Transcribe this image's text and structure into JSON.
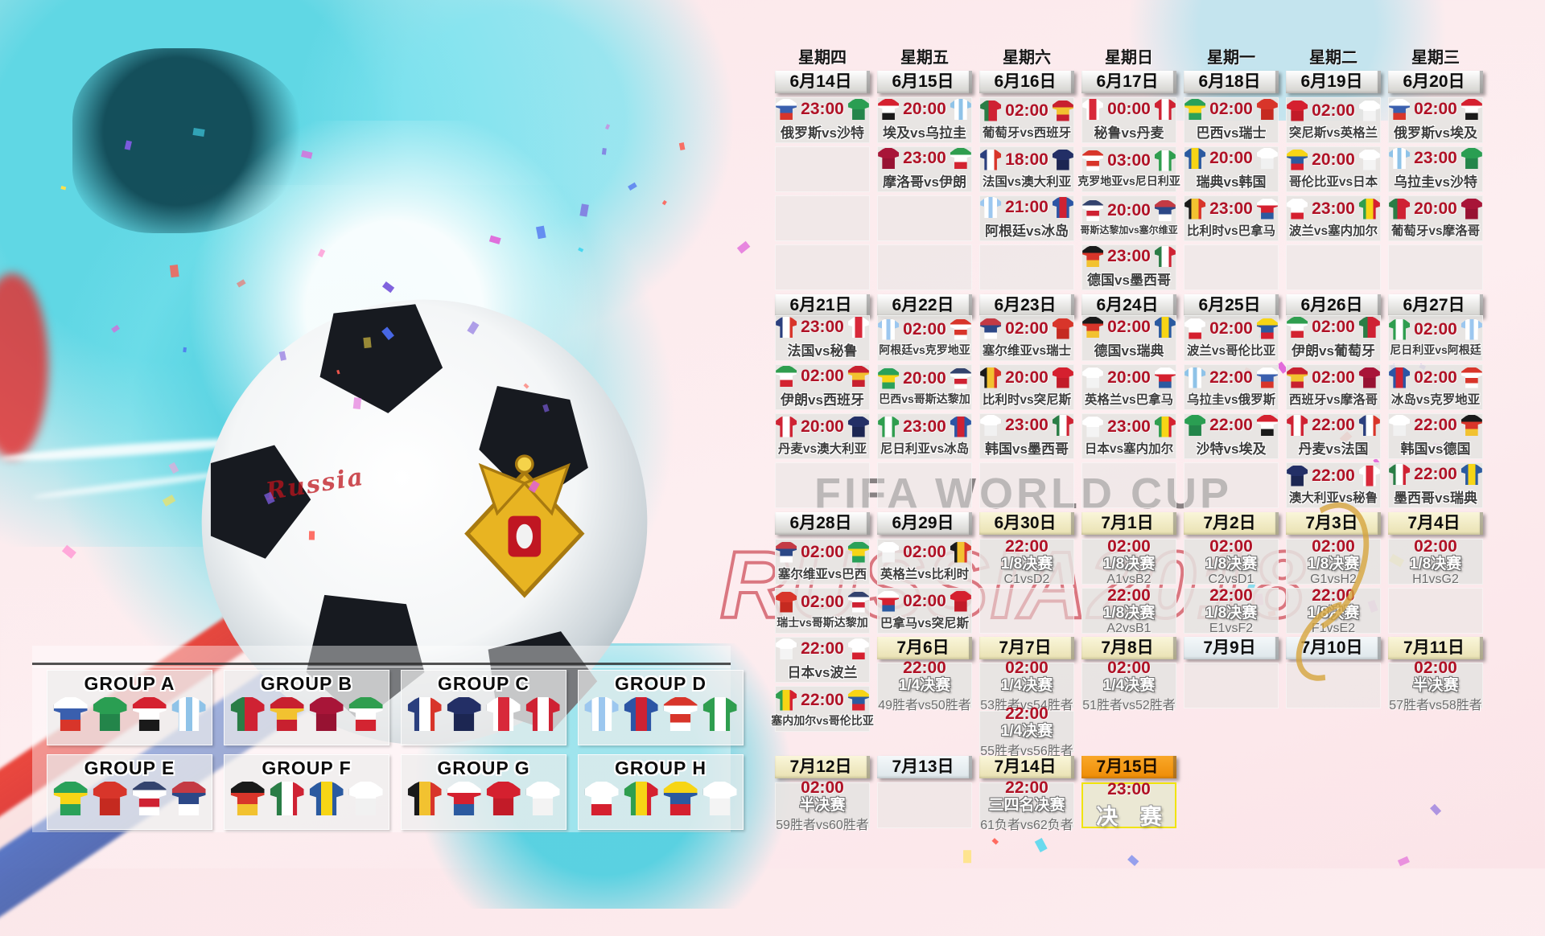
{
  "watermarks": {
    "title": "FIFA WORLD CUP",
    "subtitle": "RUSSIA2018",
    "script": "Russia"
  },
  "calendar": {
    "weekdays": [
      "星期四",
      "星期五",
      "星期六",
      "星期日",
      "星期一",
      "星期二",
      "星期三"
    ],
    "blocks": [
      {
        "dates": [
          {
            "label": "6月14日",
            "style": "plain"
          },
          {
            "label": "6月15日",
            "style": "plain"
          },
          {
            "label": "6月16日",
            "style": "plain"
          },
          {
            "label": "6月17日",
            "style": "plain"
          },
          {
            "label": "6月18日",
            "style": "plain"
          },
          {
            "label": "6月19日",
            "style": "plain"
          },
          {
            "label": "6月20日",
            "style": "plain"
          }
        ],
        "rows": [
          [
            {
              "time": "23:00",
              "home": "俄罗斯",
              "away": "沙特"
            },
            {
              "time": "20:00",
              "home": "埃及",
              "away": "乌拉圭"
            },
            {
              "time": "02:00",
              "home": "葡萄牙",
              "away": "西班牙"
            },
            {
              "time": "00:00",
              "home": "秘鲁",
              "away": "丹麦"
            },
            {
              "time": "02:00",
              "home": "巴西",
              "away": "瑞士"
            },
            {
              "time": "02:00",
              "home": "突尼斯",
              "away": "英格兰"
            },
            {
              "time": "02:00",
              "home": "俄罗斯",
              "away": "埃及"
            }
          ],
          [
            {
              "empty": true
            },
            {
              "time": "23:00",
              "home": "摩洛哥",
              "away": "伊朗"
            },
            {
              "time": "18:00",
              "home": "法国",
              "away": "澳大利亚"
            },
            {
              "time": "03:00",
              "home": "克罗地亚",
              "away": "尼日利亚"
            },
            {
              "time": "20:00",
              "home": "瑞典",
              "away": "韩国"
            },
            {
              "time": "20:00",
              "home": "哥伦比亚",
              "away": "日本"
            },
            {
              "time": "23:00",
              "home": "乌拉圭",
              "away": "沙特"
            }
          ],
          [
            {
              "empty": true
            },
            {
              "empty": true
            },
            {
              "time": "21:00",
              "home": "阿根廷",
              "away": "冰岛"
            },
            {
              "time": "20:00",
              "home": "哥斯达黎加",
              "away": "塞尔维亚"
            },
            {
              "time": "23:00",
              "home": "比利时",
              "away": "巴拿马"
            },
            {
              "time": "23:00",
              "home": "波兰",
              "away": "塞内加尔"
            },
            {
              "time": "20:00",
              "home": "葡萄牙",
              "away": "摩洛哥"
            }
          ],
          [
            {
              "empty": true
            },
            {
              "empty": true
            },
            {
              "empty": true
            },
            {
              "time": "23:00",
              "home": "德国",
              "away": "墨西哥"
            },
            {
              "empty": true
            },
            {
              "empty": true
            },
            {
              "empty": true
            }
          ]
        ]
      },
      {
        "dates": [
          {
            "label": "6月21日",
            "style": "plain"
          },
          {
            "label": "6月22日",
            "style": "plain"
          },
          {
            "label": "6月23日",
            "style": "plain"
          },
          {
            "label": "6月24日",
            "style": "plain"
          },
          {
            "label": "6月25日",
            "style": "plain"
          },
          {
            "label": "6月26日",
            "style": "plain"
          },
          {
            "label": "6月27日",
            "style": "plain"
          }
        ],
        "rows": [
          [
            {
              "time": "23:00",
              "home": "法国",
              "away": "秘鲁"
            },
            {
              "time": "02:00",
              "home": "阿根廷",
              "away": "克罗地亚"
            },
            {
              "time": "02:00",
              "home": "塞尔维亚",
              "away": "瑞士"
            },
            {
              "time": "02:00",
              "home": "德国",
              "away": "瑞典"
            },
            {
              "time": "02:00",
              "home": "波兰",
              "away": "哥伦比亚"
            },
            {
              "time": "02:00",
              "home": "伊朗",
              "away": "葡萄牙"
            },
            {
              "time": "02:00",
              "home": "尼日利亚",
              "away": "阿根廷"
            }
          ],
          [
            {
              "time": "02:00",
              "home": "伊朗",
              "away": "西班牙"
            },
            {
              "time": "20:00",
              "home": "巴西",
              "away": "哥斯达黎加"
            },
            {
              "time": "20:00",
              "home": "比利时",
              "away": "突尼斯"
            },
            {
              "time": "20:00",
              "home": "英格兰",
              "away": "巴拿马"
            },
            {
              "time": "22:00",
              "home": "乌拉圭",
              "away": "俄罗斯"
            },
            {
              "time": "02:00",
              "home": "西班牙",
              "away": "摩洛哥"
            },
            {
              "time": "02:00",
              "home": "冰岛",
              "away": "克罗地亚"
            }
          ],
          [
            {
              "time": "20:00",
              "home": "丹麦",
              "away": "澳大利亚"
            },
            {
              "time": "23:00",
              "home": "尼日利亚",
              "away": "冰岛"
            },
            {
              "time": "23:00",
              "home": "韩国",
              "away": "墨西哥"
            },
            {
              "time": "23:00",
              "home": "日本",
              "away": "塞内加尔"
            },
            {
              "time": "22:00",
              "home": "沙特",
              "away": "埃及"
            },
            {
              "time": "22:00",
              "home": "丹麦",
              "away": "法国"
            },
            {
              "time": "22:00",
              "home": "韩国",
              "away": "德国"
            }
          ],
          [
            {
              "empty": true
            },
            {
              "empty": true
            },
            {
              "empty": true
            },
            {
              "empty": true
            },
            {
              "empty": true
            },
            {
              "time": "22:00",
              "home": "澳大利亚",
              "away": "秘鲁"
            },
            {
              "time": "22:00",
              "home": "墨西哥",
              "away": "瑞典"
            }
          ]
        ]
      },
      {
        "dates": [
          {
            "label": "6月28日",
            "style": "plain"
          },
          {
            "label": "6月29日",
            "style": "plain"
          },
          {
            "label": "6月30日",
            "style": "ko"
          },
          {
            "label": "7月1日",
            "style": "ko"
          },
          {
            "label": "7月2日",
            "style": "ko"
          },
          {
            "label": "7月3日",
            "style": "ko"
          },
          {
            "label": "7月4日",
            "style": "ko"
          }
        ],
        "rows": [
          [
            {
              "time": "02:00",
              "home": "塞尔维亚",
              "away": "巴西"
            },
            {
              "time": "02:00",
              "home": "英格兰",
              "away": "比利时"
            },
            {
              "time": "22:00",
              "round": "1/8决赛",
              "pair": "C1vsD2"
            },
            {
              "time": "02:00",
              "round": "1/8决赛",
              "pair": "A1vsB2"
            },
            {
              "time": "02:00",
              "round": "1/8决赛",
              "pair": "C2vsD1"
            },
            {
              "time": "02:00",
              "round": "1/8决赛",
              "pair": "G1vsH2"
            },
            {
              "time": "02:00",
              "round": "1/8决赛",
              "pair": "H1vsG2"
            }
          ],
          [
            {
              "time": "02:00",
              "home": "瑞士",
              "away": "哥斯达黎加"
            },
            {
              "time": "02:00",
              "home": "巴拿马",
              "away": "突尼斯"
            },
            {
              "empty": true
            },
            {
              "time": "22:00",
              "round": "1/8决赛",
              "pair": "A2vsB1"
            },
            {
              "time": "22:00",
              "round": "1/8决赛",
              "pair": "E1vsF2"
            },
            {
              "time": "22:00",
              "round": "1/8决赛",
              "pair": "F1vsE2"
            },
            {
              "empty": true
            }
          ],
          [
            {
              "time": "22:00",
              "home": "日本",
              "away": "波兰"
            },
            null,
            null,
            null,
            null,
            null,
            null
          ],
          [
            {
              "time": "22:00",
              "home": "塞内加尔",
              "away": "哥伦比亚"
            },
            null,
            null,
            null,
            null,
            null,
            null
          ]
        ]
      },
      {
        "dates": [
          null,
          {
            "label": "7月6日",
            "style": "ko"
          },
          {
            "label": "7月7日",
            "style": "ko"
          },
          {
            "label": "7月8日",
            "style": "ko"
          },
          {
            "label": "7月9日",
            "style": "mid"
          },
          {
            "label": "7月10日",
            "style": "mid"
          },
          {
            "label": "7月11日",
            "style": "ko"
          }
        ],
        "rows": [
          [
            null,
            {
              "time": "22:00",
              "round": "1/4决赛",
              "pair": "49胜者vs50胜者"
            },
            {
              "time": "02:00",
              "round": "1/4决赛",
              "pair": "53胜者vs54胜者"
            },
            {
              "time": "02:00",
              "round": "1/4决赛",
              "pair": "51胜者vs52胜者"
            },
            {
              "empty": true
            },
            {
              "empty": true
            },
            {
              "time": "02:00",
              "round": "半决赛",
              "pair": "57胜者vs58胜者"
            }
          ],
          [
            null,
            null,
            {
              "time": "22:00",
              "round": "1/4决赛",
              "pair": "55胜者vs56胜者"
            },
            null,
            null,
            null,
            null
          ]
        ]
      },
      {
        "dates": [
          {
            "label": "7月12日",
            "style": "ko"
          },
          {
            "label": "7月13日",
            "style": "mid"
          },
          {
            "label": "7月14日",
            "style": "ko"
          },
          {
            "label": "7月15日",
            "style": "final"
          },
          null,
          null,
          null
        ],
        "rows": [
          [
            {
              "time": "02:00",
              "round": "半决赛",
              "pair": "59胜者vs60胜者"
            },
            {
              "empty": true
            },
            {
              "time": "22:00",
              "round": "三四名决赛",
              "pair": "61负者vs62负者"
            },
            {
              "time": "23:00",
              "final": "决 赛"
            },
            null,
            null,
            null
          ]
        ]
      }
    ]
  },
  "groups": [
    {
      "label": "GROUP A",
      "teams": [
        "俄罗斯",
        "沙特",
        "埃及",
        "乌拉圭"
      ]
    },
    {
      "label": "GROUP B",
      "teams": [
        "葡萄牙",
        "西班牙",
        "摩洛哥",
        "伊朗"
      ]
    },
    {
      "label": "GROUP C",
      "teams": [
        "法国",
        "澳大利亚",
        "秘鲁",
        "丹麦"
      ]
    },
    {
      "label": "GROUP D",
      "teams": [
        "阿根廷",
        "冰岛",
        "克罗地亚",
        "尼日利亚"
      ]
    },
    {
      "label": "GROUP E",
      "teams": [
        "巴西",
        "瑞士",
        "哥斯达黎加",
        "塞尔维亚"
      ]
    },
    {
      "label": "GROUP F",
      "teams": [
        "德国",
        "墨西哥",
        "瑞典",
        "韩国"
      ]
    },
    {
      "label": "GROUP G",
      "teams": [
        "比利时",
        "巴拿马",
        "突尼斯",
        "英格兰"
      ]
    },
    {
      "label": "GROUP H",
      "teams": [
        "波兰",
        "塞内加尔",
        "哥伦比亚",
        "日本"
      ]
    }
  ],
  "teams": {
    "俄罗斯": {
      "d": "h",
      "c": [
        "#ffffff",
        "#3a5fae",
        "#d8352a"
      ]
    },
    "沙特": {
      "d": "h",
      "c": [
        "#2a9e52",
        "#23854a"
      ]
    },
    "埃及": {
      "d": "h",
      "c": [
        "#d5202f",
        "#ffffff",
        "#1a1a1a"
      ]
    },
    "乌拉圭": {
      "d": "v",
      "c": [
        "#8fc3e8",
        "#ffffff",
        "#8fc3e8",
        "#ffffff",
        "#8fc3e8"
      ]
    },
    "葡萄牙": {
      "d": "v",
      "c": [
        "#2a7d46",
        "#2a7d46",
        "#cf2233",
        "#cf2233",
        "#cf2233"
      ]
    },
    "西班牙": {
      "d": "h",
      "c": [
        "#c8202f",
        "#f2c230",
        "#c8202f"
      ]
    },
    "摩洛哥": {
      "d": "h",
      "c": [
        "#a81538",
        "#971232"
      ]
    },
    "伊朗": {
      "d": "h",
      "c": [
        "#2f9e4f",
        "#ffffff",
        "#d32431"
      ]
    },
    "法国": {
      "d": "v",
      "c": [
        "#2b3f7e",
        "#ffffff",
        "#d8352a"
      ]
    },
    "澳大利亚": {
      "d": "h",
      "c": [
        "#232f66",
        "#1c2652"
      ]
    },
    "秘鲁": {
      "d": "v",
      "c": [
        "#ffffff",
        "#d8293a",
        "#ffffff"
      ]
    },
    "丹麦": {
      "d": "v",
      "c": [
        "#cf2233",
        "#ffffff",
        "#cf2233"
      ]
    },
    "阿根廷": {
      "d": "v",
      "c": [
        "#9cc7ef",
        "#ffffff",
        "#9cc7ef",
        "#ffffff",
        "#9cc7ef"
      ]
    },
    "冰岛": {
      "d": "v",
      "c": [
        "#2c55a5",
        "#cf2233",
        "#2c55a5"
      ]
    },
    "克罗地亚": {
      "d": "h",
      "c": [
        "#d8352a",
        "#ffffff",
        "#d8352a",
        "#ffffff"
      ]
    },
    "尼日利亚": {
      "d": "v",
      "c": [
        "#2f9e4f",
        "#ffffff",
        "#2f9e4f"
      ]
    },
    "巴西": {
      "d": "h",
      "c": [
        "#2aa159",
        "#f7d515",
        "#2aa159"
      ]
    },
    "瑞士": {
      "d": "h",
      "c": [
        "#d8352a",
        "#c52a20"
      ]
    },
    "哥斯达黎加": {
      "d": "h",
      "c": [
        "#33436e",
        "#ffffff",
        "#cf2233",
        "#ffffff"
      ]
    },
    "塞尔维亚": {
      "d": "h",
      "c": [
        "#c43a44",
        "#2c4887",
        "#ffffff"
      ]
    },
    "德国": {
      "d": "h",
      "c": [
        "#1a1a1a",
        "#d8352a",
        "#f2c230"
      ]
    },
    "墨西哥": {
      "d": "v",
      "c": [
        "#2a7d46",
        "#ffffff",
        "#cf2233"
      ]
    },
    "瑞典": {
      "d": "v",
      "c": [
        "#2b5aa0",
        "#f7d515",
        "#2b5aa0"
      ]
    },
    "韩国": {
      "d": "h",
      "c": [
        "#ffffff",
        "#f1f1f1"
      ]
    },
    "比利时": {
      "d": "v",
      "c": [
        "#1a1a1a",
        "#f2c230",
        "#d8352a"
      ]
    },
    "巴拿马": {
      "d": "h",
      "c": [
        "#ffffff",
        "#d5202f",
        "#2b5aa0"
      ]
    },
    "突尼斯": {
      "d": "h",
      "c": [
        "#d5202f",
        "#c21b28"
      ]
    },
    "英格兰": {
      "d": "h",
      "c": [
        "#ffffff",
        "#f3f3f3"
      ]
    },
    "波兰": {
      "d": "h",
      "c": [
        "#ffffff",
        "#ffffff",
        "#d5202f"
      ]
    },
    "塞内加尔": {
      "d": "v",
      "c": [
        "#2f9e4f",
        "#f7d515",
        "#d5202f"
      ]
    },
    "哥伦比亚": {
      "d": "h",
      "c": [
        "#f7d515",
        "#2b5aa0",
        "#d5202f"
      ]
    },
    "日本": {
      "d": "h",
      "c": [
        "#ffffff",
        "#f4f4f4"
      ]
    }
  }
}
